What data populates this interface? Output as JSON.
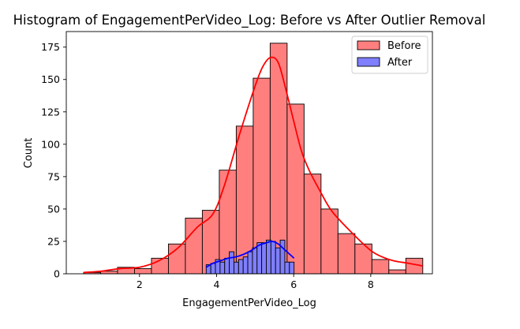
{
  "colors": {
    "before_fill": "#ff7f7f",
    "before_kde": "#ff0000",
    "after_fill": "#7f7fff",
    "after_kde": "#0000ff",
    "edge": "#000000",
    "corner_tab_blue": "#2f6fbf",
    "corner_tab_grey": "#e6e6e6"
  },
  "chart_data": {
    "type": "histogram",
    "title": "Histogram of EngagementPerVideo_Log: Before vs After Outlier Removal",
    "xlabel": "EngagementPerVideo_Log",
    "ylabel": "Count",
    "xlim": [
      0.1,
      9.6
    ],
    "ylim": [
      0,
      187
    ],
    "xticks": [
      2,
      4,
      6,
      8
    ],
    "yticks": [
      0,
      25,
      50,
      75,
      100,
      125,
      150,
      175
    ],
    "grid": false,
    "legend_position": "top-right",
    "series": [
      {
        "name": "Before",
        "bins": [
          {
            "x0": 0.55,
            "x1": 0.99,
            "count": 1
          },
          {
            "x0": 0.99,
            "x1": 1.43,
            "count": 2
          },
          {
            "x0": 1.43,
            "x1": 1.87,
            "count": 5
          },
          {
            "x0": 1.87,
            "x1": 2.31,
            "count": 4
          },
          {
            "x0": 2.31,
            "x1": 2.75,
            "count": 12
          },
          {
            "x0": 2.75,
            "x1": 3.19,
            "count": 23
          },
          {
            "x0": 3.19,
            "x1": 3.63,
            "count": 43
          },
          {
            "x0": 3.63,
            "x1": 4.07,
            "count": 49
          },
          {
            "x0": 4.07,
            "x1": 4.51,
            "count": 80
          },
          {
            "x0": 4.51,
            "x1": 4.95,
            "count": 114
          },
          {
            "x0": 4.95,
            "x1": 5.39,
            "count": 151
          },
          {
            "x0": 5.39,
            "x1": 5.83,
            "count": 178
          },
          {
            "x0": 5.83,
            "x1": 6.27,
            "count": 131
          },
          {
            "x0": 6.27,
            "x1": 6.71,
            "count": 77
          },
          {
            "x0": 6.71,
            "x1": 7.15,
            "count": 50
          },
          {
            "x0": 7.15,
            "x1": 7.59,
            "count": 31
          },
          {
            "x0": 7.59,
            "x1": 8.03,
            "count": 23
          },
          {
            "x0": 8.03,
            "x1": 8.47,
            "count": 11
          },
          {
            "x0": 8.47,
            "x1": 8.91,
            "count": 3
          },
          {
            "x0": 8.91,
            "x1": 9.35,
            "count": 12
          }
        ],
        "kde": [
          [
            0.55,
            1
          ],
          [
            1.0,
            2
          ],
          [
            1.5,
            4
          ],
          [
            2.0,
            5
          ],
          [
            2.5,
            10
          ],
          [
            3.0,
            20
          ],
          [
            3.5,
            36
          ],
          [
            3.9,
            46
          ],
          [
            4.2,
            68
          ],
          [
            4.6,
            108
          ],
          [
            5.0,
            145
          ],
          [
            5.2,
            160
          ],
          [
            5.4,
            167
          ],
          [
            5.6,
            163
          ],
          [
            5.8,
            142
          ],
          [
            6.0,
            118
          ],
          [
            6.2,
            95
          ],
          [
            6.4,
            80
          ],
          [
            6.7,
            63
          ],
          [
            7.0,
            48
          ],
          [
            7.5,
            32
          ],
          [
            8.0,
            18
          ],
          [
            8.3,
            13
          ],
          [
            8.6,
            10
          ],
          [
            9.0,
            8
          ],
          [
            9.35,
            6
          ]
        ]
      },
      {
        "name": "After",
        "bins": [
          {
            "x0": 3.73,
            "x1": 3.85,
            "count": 7
          },
          {
            "x0": 3.85,
            "x1": 3.97,
            "count": 8
          },
          {
            "x0": 3.97,
            "x1": 4.09,
            "count": 11
          },
          {
            "x0": 4.09,
            "x1": 4.21,
            "count": 9
          },
          {
            "x0": 4.21,
            "x1": 4.33,
            "count": 12
          },
          {
            "x0": 4.33,
            "x1": 4.45,
            "count": 17
          },
          {
            "x0": 4.45,
            "x1": 4.57,
            "count": 9
          },
          {
            "x0": 4.57,
            "x1": 4.69,
            "count": 11
          },
          {
            "x0": 4.69,
            "x1": 4.81,
            "count": 13
          },
          {
            "x0": 4.81,
            "x1": 4.93,
            "count": 17
          },
          {
            "x0": 4.93,
            "x1": 5.05,
            "count": 20
          },
          {
            "x0": 5.05,
            "x1": 5.17,
            "count": 24
          },
          {
            "x0": 5.17,
            "x1": 5.29,
            "count": 24
          },
          {
            "x0": 5.29,
            "x1": 5.41,
            "count": 26
          },
          {
            "x0": 5.41,
            "x1": 5.53,
            "count": 25
          },
          {
            "x0": 5.53,
            "x1": 5.65,
            "count": 20
          },
          {
            "x0": 5.65,
            "x1": 5.77,
            "count": 26
          },
          {
            "x0": 5.77,
            "x1": 5.89,
            "count": 9
          },
          {
            "x0": 5.89,
            "x1": 6.01,
            "count": 9
          }
        ],
        "kde": [
          [
            3.73,
            5
          ],
          [
            3.9,
            8
          ],
          [
            4.1,
            10
          ],
          [
            4.3,
            12
          ],
          [
            4.5,
            13
          ],
          [
            4.7,
            15
          ],
          [
            4.9,
            18
          ],
          [
            5.1,
            22
          ],
          [
            5.3,
            24
          ],
          [
            5.45,
            25
          ],
          [
            5.6,
            23
          ],
          [
            5.75,
            19
          ],
          [
            5.9,
            15
          ],
          [
            6.01,
            12
          ]
        ]
      }
    ]
  }
}
